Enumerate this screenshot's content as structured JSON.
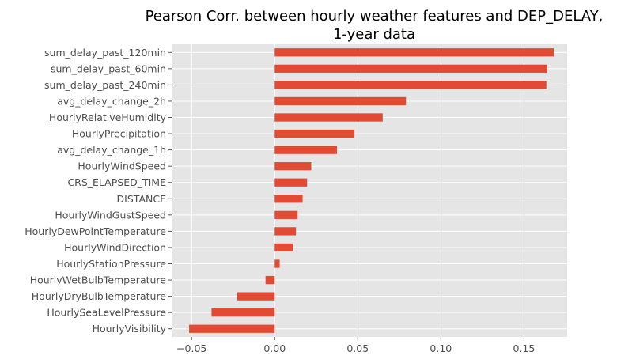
{
  "chart_data": {
    "type": "bar",
    "orientation": "horizontal",
    "title": "Pearson Corr. between hourly weather features and DEP_DELAY,",
    "subtitle": "1-year data",
    "xlabel": "",
    "ylabel": "",
    "xlim": [
      -0.062,
      0.176
    ],
    "xticks": [
      -0.05,
      0.0,
      0.05,
      0.1,
      0.15
    ],
    "xtick_labels": [
      "−0.05",
      "0.00",
      "0.05",
      "0.10",
      "0.15"
    ],
    "grid": true,
    "style": "ggplot",
    "bar_color": "#E24A33",
    "background_color": "#E5E5E5",
    "grid_color": "#FFFFFF",
    "categories": [
      "sum_delay_past_120min",
      "sum_delay_past_60min",
      "sum_delay_past_240min",
      "avg_delay_change_2h",
      "HourlyRelativeHumidity",
      "HourlyPrecipitation",
      "avg_delay_change_1h",
      "HourlyWindSpeed",
      "CRS_ELAPSED_TIME",
      "DISTANCE",
      "HourlyWindGustSpeed",
      "HourlyDewPointTemperature",
      "HourlyWindDirection",
      "HourlyStationPressure",
      "HourlyWetBulbTemperature",
      "HourlyDryBulbTemperature",
      "HourlySeaLevelPressure",
      "HourlyVisibility"
    ],
    "values": [
      0.168,
      0.164,
      0.1635,
      0.079,
      0.065,
      0.048,
      0.0375,
      0.022,
      0.0195,
      0.0168,
      0.0138,
      0.0128,
      0.011,
      0.003,
      -0.0055,
      -0.0225,
      -0.038,
      -0.0515
    ]
  }
}
